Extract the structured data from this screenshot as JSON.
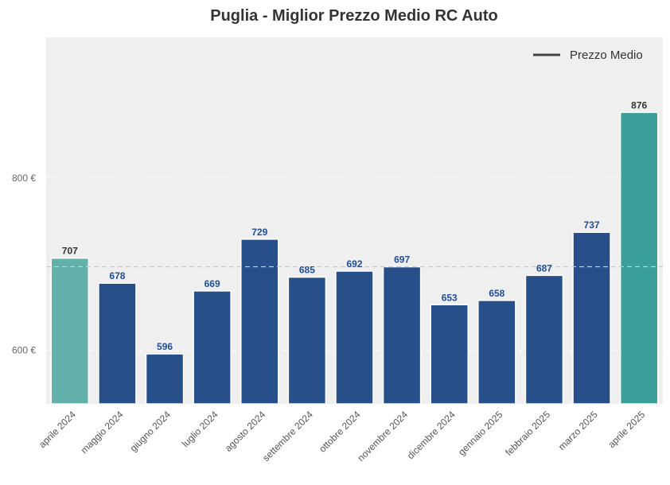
{
  "chart_data": {
    "type": "bar",
    "title": "Puglia - Miglior Prezzo Medio RC Auto",
    "xlabel": "",
    "ylabel": "",
    "categories": [
      "aprile 2024",
      "maggio 2024",
      "giugno 2024",
      "luglio 2024",
      "agosto 2024",
      "settembre 2024",
      "ottobre 2024",
      "novembre 2024",
      "dicembre 2024",
      "gennaio 2025",
      "febbraio 2025",
      "marzo 2025",
      "aprile 2025"
    ],
    "values": [
      707,
      678,
      596,
      669,
      729,
      685,
      692,
      697,
      653,
      658,
      687,
      737,
      876
    ],
    "ylim": [
      538,
      963
    ],
    "yticks": [
      600,
      800
    ],
    "ytick_labels": [
      "600 €",
      "800 €"
    ],
    "average": 697,
    "legend": {
      "label": "Prezzo Medio",
      "placement": "top-right"
    },
    "grid": true,
    "colors": {
      "first_bar": "#62b0aa",
      "middle_bar": "#274f8a",
      "last_bar": "#3b9e98",
      "first_last_label": "#333333",
      "middle_label": "#1f4e9a",
      "plot_bg": "#efefef",
      "average_line": "#cccccc"
    }
  }
}
